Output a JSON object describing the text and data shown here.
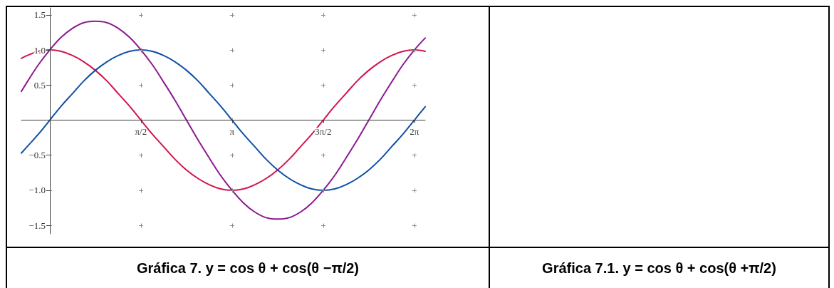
{
  "chart_data": [
    {
      "type": "line",
      "x": [
        -0.49,
        -0.393,
        -0.196,
        0,
        0.196,
        0.393,
        0.589,
        0.785,
        0.982,
        1.178,
        1.374,
        1.571,
        1.767,
        1.963,
        2.16,
        2.356,
        2.553,
        2.749,
        2.945,
        3.142,
        3.338,
        3.534,
        3.731,
        3.927,
        4.123,
        4.32,
        4.516,
        4.712,
        4.909,
        5.105,
        5.301,
        5.498,
        5.694,
        5.89,
        6.087,
        6.283,
        6.47
      ],
      "series": [
        {
          "color": "#d2144a",
          "values": [
            0.88,
            0.92,
            0.98,
            1,
            0.98,
            0.92,
            0.83,
            0.71,
            0.56,
            0.38,
            0.2,
            0,
            -0.2,
            -0.38,
            -0.56,
            -0.71,
            -0.83,
            -0.92,
            -0.98,
            -1,
            -0.98,
            -0.92,
            -0.83,
            -0.71,
            -0.56,
            -0.38,
            -0.2,
            0,
            0.2,
            0.38,
            0.56,
            0.71,
            0.83,
            0.92,
            0.98,
            1,
            0.98
          ]
        },
        {
          "color": "#8b1a8e",
          "values": [
            0.41,
            0.54,
            0.79,
            1,
            1.18,
            1.31,
            1.39,
            1.41,
            1.39,
            1.31,
            1.18,
            1,
            0.79,
            0.54,
            0.28,
            0,
            -0.28,
            -0.54,
            -0.79,
            -1,
            -1.18,
            -1.31,
            -1.39,
            -1.41,
            -1.39,
            -1.31,
            -1.18,
            -1,
            -0.79,
            -0.54,
            -0.28,
            0,
            0.28,
            0.54,
            0.79,
            1,
            1.17
          ]
        },
        {
          "color": "#0f4fa8",
          "values": [
            -0.47,
            -0.38,
            -0.2,
            0,
            0.2,
            0.38,
            0.56,
            0.71,
            0.83,
            0.92,
            0.98,
            1,
            0.98,
            0.92,
            0.83,
            0.71,
            0.56,
            0.38,
            0.2,
            0,
            -0.2,
            -0.38,
            -0.56,
            -0.71,
            -0.83,
            -0.92,
            -0.98,
            -1,
            -0.98,
            -0.92,
            -0.83,
            -0.71,
            -0.56,
            -0.38,
            -0.2,
            0,
            0.19
          ]
        }
      ],
      "xlim": [
        -0.49,
        6.47
      ],
      "xticks": [
        {
          "value": 1.5708,
          "label": "π/2"
        },
        {
          "value": 3.1416,
          "label": "π"
        },
        {
          "value": 4.7124,
          "label": "3π/2"
        },
        {
          "value": 6.2832,
          "label": "2π"
        }
      ],
      "ylim": [
        -1.62,
        1.6
      ],
      "yticks": [
        {
          "value": -1.5,
          "label": "−1.5"
        },
        {
          "value": -1,
          "label": "−1.0"
        },
        {
          "value": -0.5,
          "label": "−0.5"
        },
        0.5,
        {
          "value": 1,
          "label": "1.0"
        },
        1.5
      ],
      "grid": true,
      "marker": "none",
      "line_style": "solid",
      "annotations": [
        "Gráfica 7. y = cos θ + cos(θ −π/2)"
      ]
    },
    {
      "type": "other",
      "annotations": [
        "Gráfica 7.1. y = cos θ + cos(θ +π/2)"
      ]
    }
  ]
}
